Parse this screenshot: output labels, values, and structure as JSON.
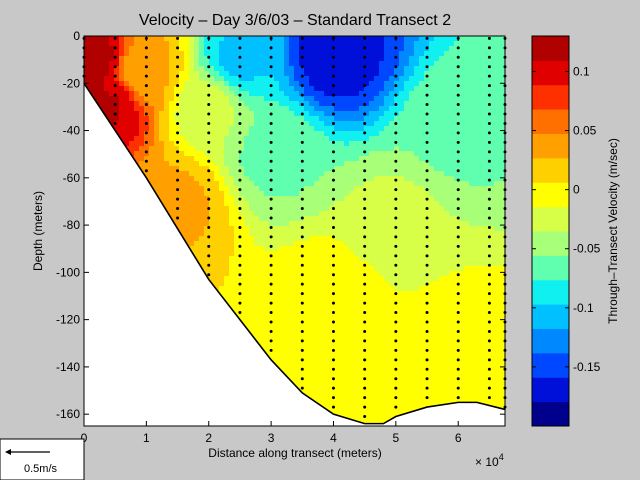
{
  "chart_data": {
    "type": "heatmap",
    "title": "Velocity – Day 3/6/03 – Standard Transect 2",
    "xlabel": "Distance along transect (meters)",
    "ylabel": "Depth (meters)",
    "x_multiplier": "× 10",
    "x_multiplier_exp": "4",
    "xlim": [
      0,
      67500
    ],
    "ylim": [
      -165,
      0
    ],
    "x_ticks": [
      0,
      10000,
      20000,
      30000,
      40000,
      50000,
      60000
    ],
    "x_tick_labels": [
      "0",
      "1",
      "2",
      "3",
      "4",
      "5",
      "6"
    ],
    "y_ticks": [
      0,
      -20,
      -40,
      -60,
      -80,
      -100,
      -120,
      -140,
      -160
    ],
    "colorbar": {
      "label": "Through–Transect Velocity (m/sec)",
      "range": [
        -0.2,
        0.13
      ],
      "ticks": [
        0.1,
        0.05,
        0,
        -0.05,
        -0.1,
        -0.15
      ],
      "tick_labels": [
        "0.1",
        "0.05",
        "0",
        "-0.05",
        "-0.1",
        "-0.15"
      ],
      "colors": [
        "#00008c",
        "#0010d8",
        "#0048ff",
        "#0088ff",
        "#00c0ff",
        "#10f0f0",
        "#60ffb0",
        "#a8ff78",
        "#d8ff48",
        "#ffff00",
        "#ffd000",
        "#ffa000",
        "#ff7000",
        "#ff3000",
        "#e00000",
        "#b00000"
      ]
    },
    "bottom_profile": [
      [
        0,
        -20
      ],
      [
        10000,
        -60
      ],
      [
        20000,
        -103
      ],
      [
        30000,
        -137
      ],
      [
        35000,
        -151
      ],
      [
        40000,
        -160
      ],
      [
        45000,
        -164
      ],
      [
        48000,
        -164
      ],
      [
        50000,
        -161
      ],
      [
        55000,
        -157
      ],
      [
        60000,
        -155
      ],
      [
        63000,
        -155
      ],
      [
        67500,
        -158
      ]
    ],
    "velocity_samples": [
      {
        "x": 1000,
        "depth": -10,
        "v": 0.12
      },
      {
        "x": 4000,
        "depth": -30,
        "v": 0.11
      },
      {
        "x": 10000,
        "depth": -15,
        "v": 0.03
      },
      {
        "x": 15000,
        "depth": -70,
        "v": 0.03
      },
      {
        "x": 20000,
        "depth": -30,
        "v": -0.03
      },
      {
        "x": 25000,
        "depth": -10,
        "v": -0.1
      },
      {
        "x": 30000,
        "depth": -50,
        "v": -0.06
      },
      {
        "x": 40000,
        "depth": -8,
        "v": -0.17
      },
      {
        "x": 40000,
        "depth": -110,
        "v": 0.0
      },
      {
        "x": 50000,
        "depth": -80,
        "v": -0.03
      },
      {
        "x": 60000,
        "depth": -40,
        "v": -0.06
      },
      {
        "x": 60000,
        "depth": -130,
        "v": 0.0
      }
    ],
    "sample_stations_x": [
      0,
      5000,
      10000,
      15000,
      20000,
      25000,
      30000,
      35000,
      40000,
      45000,
      50000,
      55000,
      60000,
      65000,
      67500
    ]
  },
  "scale_arrow": {
    "label": "0.5m/s"
  }
}
